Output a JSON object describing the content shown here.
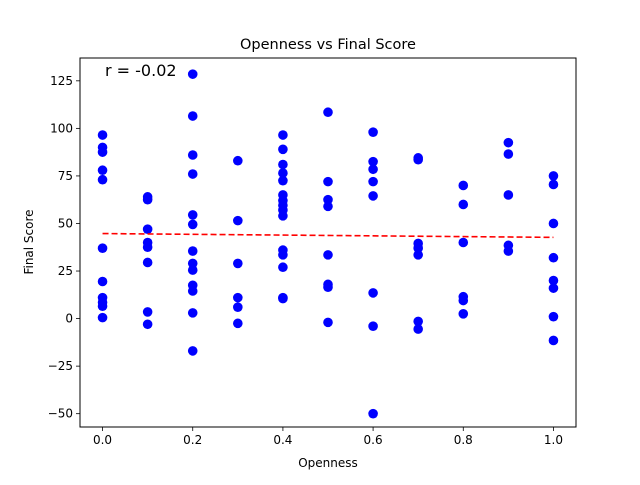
{
  "chart_data": {
    "type": "scatter",
    "title": "Openness vs Final Score",
    "xlabel": "Openness",
    "ylabel": "Final Score",
    "xlim": [
      -0.05,
      1.05
    ],
    "ylim": [
      -57,
      137
    ],
    "xticks": [
      0.0,
      0.2,
      0.4,
      0.6,
      0.8,
      1.0
    ],
    "xtick_labels": [
      "0.0",
      "0.2",
      "0.4",
      "0.6",
      "0.8",
      "1.0"
    ],
    "yticks": [
      -50,
      -25,
      0,
      25,
      50,
      75,
      100,
      125
    ],
    "ytick_labels": [
      "−50",
      "−25",
      "0",
      "25",
      "50",
      "75",
      "100",
      "125"
    ],
    "annotation": "r = -0.02",
    "grid": false,
    "point_color": "#0000ff",
    "trend_color": "#ff0000",
    "trend_line": {
      "style": "dashed",
      "x": [
        0.0,
        1.0
      ],
      "y": [
        44.7,
        42.7
      ]
    },
    "points": [
      [
        0.0,
        96.5
      ],
      [
        0.0,
        90.0
      ],
      [
        0.0,
        87.5
      ],
      [
        0.0,
        78.0
      ],
      [
        0.0,
        73.0
      ],
      [
        0.0,
        37.0
      ],
      [
        0.0,
        19.5
      ],
      [
        0.0,
        11.0
      ],
      [
        0.0,
        8.5
      ],
      [
        0.0,
        6.5
      ],
      [
        0.0,
        0.5
      ],
      [
        0.1,
        64.0
      ],
      [
        0.1,
        62.5
      ],
      [
        0.1,
        47.0
      ],
      [
        0.1,
        40.0
      ],
      [
        0.1,
        37.5
      ],
      [
        0.1,
        29.5
      ],
      [
        0.1,
        3.5
      ],
      [
        0.1,
        -3.0
      ],
      [
        0.2,
        128.5
      ],
      [
        0.2,
        106.5
      ],
      [
        0.2,
        86.0
      ],
      [
        0.2,
        76.0
      ],
      [
        0.2,
        54.5
      ],
      [
        0.2,
        49.5
      ],
      [
        0.2,
        35.5
      ],
      [
        0.2,
        29.0
      ],
      [
        0.2,
        25.5
      ],
      [
        0.2,
        17.5
      ],
      [
        0.2,
        14.5
      ],
      [
        0.2,
        3.0
      ],
      [
        0.2,
        -17.0
      ],
      [
        0.3,
        83.0
      ],
      [
        0.3,
        51.5
      ],
      [
        0.3,
        29.0
      ],
      [
        0.3,
        11.0
      ],
      [
        0.3,
        6.0
      ],
      [
        0.3,
        -2.5
      ],
      [
        0.4,
        96.5
      ],
      [
        0.4,
        89.0
      ],
      [
        0.4,
        81.0
      ],
      [
        0.4,
        76.5
      ],
      [
        0.4,
        72.5
      ],
      [
        0.4,
        65.0
      ],
      [
        0.4,
        62.0
      ],
      [
        0.4,
        59.5
      ],
      [
        0.4,
        57.0
      ],
      [
        0.4,
        54.0
      ],
      [
        0.4,
        36.0
      ],
      [
        0.4,
        33.5
      ],
      [
        0.4,
        27.0
      ],
      [
        0.4,
        11.0
      ],
      [
        0.4,
        10.5
      ],
      [
        0.5,
        108.5
      ],
      [
        0.5,
        72.0
      ],
      [
        0.5,
        62.5
      ],
      [
        0.5,
        59.0
      ],
      [
        0.5,
        33.5
      ],
      [
        0.5,
        18.0
      ],
      [
        0.5,
        16.5
      ],
      [
        0.5,
        -2.0
      ],
      [
        0.6,
        98.0
      ],
      [
        0.6,
        82.5
      ],
      [
        0.6,
        78.5
      ],
      [
        0.6,
        72.0
      ],
      [
        0.6,
        64.5
      ],
      [
        0.6,
        13.5
      ],
      [
        0.6,
        -4.0
      ],
      [
        0.6,
        -50.0
      ],
      [
        0.7,
        84.5
      ],
      [
        0.7,
        83.5
      ],
      [
        0.7,
        39.5
      ],
      [
        0.7,
        37.0
      ],
      [
        0.7,
        33.5
      ],
      [
        0.7,
        -1.5
      ],
      [
        0.7,
        -5.5
      ],
      [
        0.8,
        70.0
      ],
      [
        0.8,
        60.0
      ],
      [
        0.8,
        40.0
      ],
      [
        0.8,
        11.5
      ],
      [
        0.8,
        9.5
      ],
      [
        0.8,
        2.5
      ],
      [
        0.9,
        92.5
      ],
      [
        0.9,
        86.5
      ],
      [
        0.9,
        65.0
      ],
      [
        0.9,
        38.5
      ],
      [
        0.9,
        35.5
      ],
      [
        1.0,
        75.0
      ],
      [
        1.0,
        70.5
      ],
      [
        1.0,
        50.0
      ],
      [
        1.0,
        32.0
      ],
      [
        1.0,
        20.0
      ],
      [
        1.0,
        16.0
      ],
      [
        1.0,
        1.0
      ],
      [
        1.0,
        -11.5
      ]
    ]
  }
}
